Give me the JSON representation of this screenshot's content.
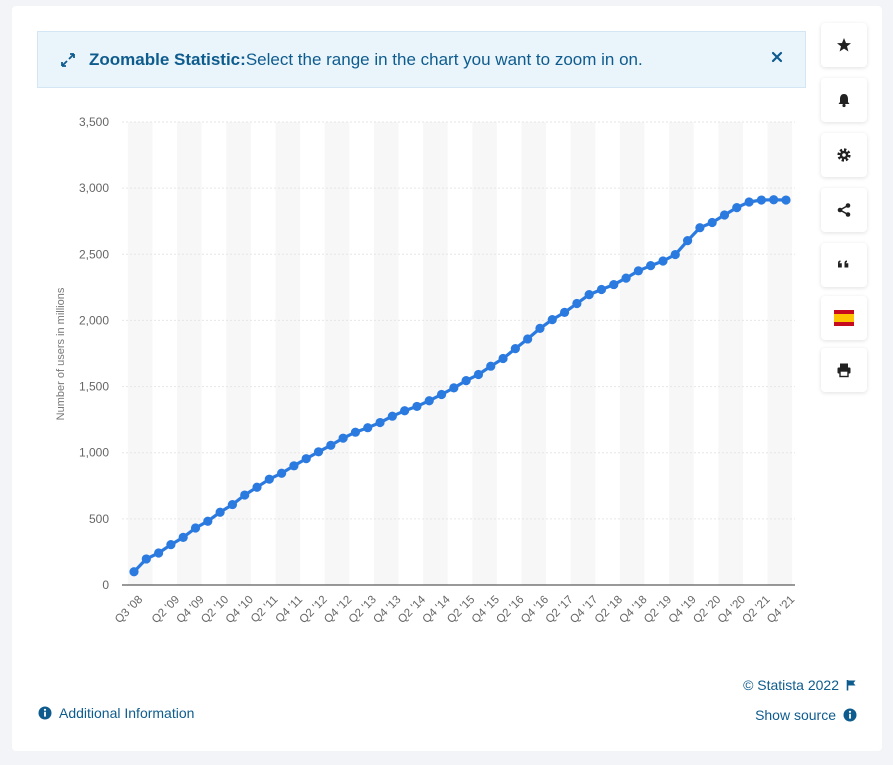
{
  "banner": {
    "title": "Zoomable Statistic:",
    "text": "Select the range in the chart you want to zoom in on."
  },
  "sidebar": {
    "buttons": [
      "star-icon",
      "bell-icon",
      "gear-icon",
      "share-icon",
      "quote-icon",
      "flag-icon",
      "print-icon"
    ]
  },
  "footer": {
    "credit": "© Statista 2022",
    "additional_info": "Additional Information",
    "show_source": "Show source"
  },
  "colors": {
    "line": "#2b7ae0",
    "banner_text": "#0e5c8e",
    "band": "#f7f7f7",
    "grid": "#e6e6e6"
  },
  "chart_data": {
    "type": "line",
    "title": "",
    "xlabel": "",
    "ylabel": "Number of users in millions",
    "ylim": [
      0,
      3500
    ],
    "yticks": [
      0,
      500,
      1000,
      1500,
      2000,
      2500,
      3000,
      3500
    ],
    "ytick_labels": [
      "0",
      "500",
      "1,000",
      "1,500",
      "2,000",
      "2,500",
      "3,000",
      "3,500"
    ],
    "grid": true,
    "legend": "none",
    "categories": [
      "Q3 '08",
      "Q4 '08",
      "Q1 '09",
      "Q2 '09",
      "Q3 '09",
      "Q4 '09",
      "Q1 '10",
      "Q2 '10",
      "Q3 '10",
      "Q4 '10",
      "Q1 '11",
      "Q2 '11",
      "Q3 '11",
      "Q4 '11",
      "Q1 '12",
      "Q2 '12",
      "Q3 '12",
      "Q4 '12",
      "Q1 '13",
      "Q2 '13",
      "Q3 '13",
      "Q4 '13",
      "Q1 '14",
      "Q2 '14",
      "Q3 '14",
      "Q4 '14",
      "Q1 '15",
      "Q2 '15",
      "Q3 '15",
      "Q4 '15",
      "Q1 '16",
      "Q2 '16",
      "Q3 '16",
      "Q4 '16",
      "Q1 '17",
      "Q2 '17",
      "Q3 '17",
      "Q4 '17",
      "Q1 '18",
      "Q2 '18",
      "Q3 '18",
      "Q4 '18",
      "Q1 '19",
      "Q2 '19",
      "Q3 '19",
      "Q4 '19",
      "Q1 '20",
      "Q2 '20",
      "Q3 '20",
      "Q4 '20",
      "Q1 '21",
      "Q2 '21",
      "Q3 '21",
      "Q4 '21"
    ],
    "shown_tick_labels": [
      "Q3 '08",
      "Q2 '09",
      "Q4 '09",
      "Q2 '10",
      "Q4 '10",
      "Q2 '11",
      "Q4 '11",
      "Q2 '12",
      "Q4 '12",
      "Q2 '13",
      "Q4 '13",
      "Q2 '14",
      "Q4 '14",
      "Q2 '15",
      "Q4 '15",
      "Q2 '16",
      "Q4 '16",
      "Q2 '17",
      "Q4 '17",
      "Q2 '18",
      "Q4 '18",
      "Q2 '19",
      "Q4 '19",
      "Q2 '20",
      "Q4 '20",
      "Q2 '21",
      "Q4 '21"
    ],
    "values": [
      100,
      197,
      242,
      305,
      360,
      431,
      482,
      550,
      608,
      680,
      739,
      800,
      845,
      901,
      955,
      1007,
      1056,
      1110,
      1155,
      1189,
      1228,
      1276,
      1317,
      1350,
      1393,
      1440,
      1490,
      1545,
      1591,
      1654,
      1712,
      1787,
      1860,
      1940,
      2006,
      2061,
      2128,
      2195,
      2234,
      2271,
      2320,
      2375,
      2414,
      2449,
      2498,
      2603,
      2701,
      2740,
      2797,
      2853,
      2895,
      2910,
      2912,
      2910
    ]
  }
}
